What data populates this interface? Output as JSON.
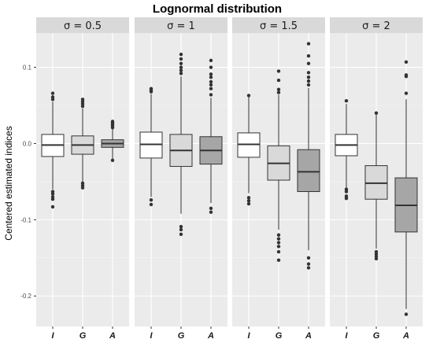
{
  "chart_data": {
    "type": "box",
    "title": "Lognormal distribution",
    "xlabel": "",
    "ylabel": "Centered estimated indices",
    "ylim": [
      -0.24,
      0.145
    ],
    "yticks": [
      0.1,
      0.0,
      -0.1,
      -0.2
    ],
    "ytick_labels": [
      "0.1",
      "0.0",
      "-0.1",
      "-0.2"
    ],
    "categories": [
      "I",
      "G",
      "A"
    ],
    "fill_colors": {
      "I": "#ffffff",
      "G": "#d9d9d9",
      "A": "#a6a6a6"
    },
    "grid": true,
    "panel_background": "#ebebeb",
    "strip_background": "#d9d9d9",
    "facets": [
      {
        "label": "σ = 0.5",
        "boxes": [
          {
            "category": "I",
            "lower_whisker": -0.06,
            "q1": -0.017,
            "median": -0.002,
            "q3": 0.012,
            "upper_whisker": 0.055,
            "outliers": [
              -0.083,
              -0.073,
              -0.07,
              -0.066,
              -0.063,
              0.058,
              0.061,
              0.066
            ]
          },
          {
            "category": "G",
            "lower_whisker": -0.05,
            "q1": -0.014,
            "median": -0.002,
            "q3": 0.01,
            "upper_whisker": 0.046,
            "outliers": [
              -0.058,
              -0.055,
              -0.052,
              0.049,
              0.052,
              0.055,
              0.058
            ]
          },
          {
            "category": "A",
            "lower_whisker": -0.022,
            "q1": -0.005,
            "median": 0.0,
            "q3": 0.005,
            "upper_whisker": 0.02,
            "outliers": [
              -0.022,
              0.021,
              0.023,
              0.025,
              0.027,
              0.029
            ]
          }
        ]
      },
      {
        "label": "σ = 1",
        "boxes": [
          {
            "category": "I",
            "lower_whisker": -0.07,
            "q1": -0.019,
            "median": -0.001,
            "q3": 0.015,
            "upper_whisker": 0.065,
            "outliers": [
              -0.08,
              -0.074,
              0.068,
              0.07,
              0.072
            ]
          },
          {
            "category": "G",
            "lower_whisker": -0.092,
            "q1": -0.03,
            "median": -0.009,
            "q3": 0.012,
            "upper_whisker": 0.088,
            "outliers": [
              -0.119,
              -0.113,
              -0.109,
              0.092,
              0.096,
              0.1,
              0.105,
              0.111,
              0.117
            ]
          },
          {
            "category": "A",
            "lower_whisker": -0.078,
            "q1": -0.027,
            "median": -0.009,
            "q3": 0.009,
            "upper_whisker": 0.06,
            "outliers": [
              -0.09,
              -0.085,
              0.064,
              0.072,
              0.077,
              0.081,
              0.087,
              0.091,
              0.1,
              0.109
            ]
          }
        ]
      },
      {
        "label": "σ = 1.5",
        "boxes": [
          {
            "category": "I",
            "lower_whisker": -0.065,
            "q1": -0.018,
            "median": -0.001,
            "q3": 0.014,
            "upper_whisker": 0.063,
            "outliers": [
              -0.079,
              -0.075,
              -0.071,
              0.063
            ]
          },
          {
            "category": "G",
            "lower_whisker": -0.113,
            "q1": -0.048,
            "median": -0.026,
            "q3": -0.003,
            "upper_whisker": 0.064,
            "outliers": [
              -0.153,
              -0.142,
              -0.135,
              -0.13,
              -0.125,
              -0.12,
              0.067,
              0.071,
              0.083,
              0.095
            ]
          },
          {
            "category": "A",
            "lower_whisker": -0.14,
            "q1": -0.063,
            "median": -0.037,
            "q3": -0.008,
            "upper_whisker": 0.073,
            "outliers": [
              -0.163,
              -0.158,
              -0.15,
              0.077,
              0.082,
              0.087,
              0.093,
              0.105,
              0.115,
              0.131
            ]
          }
        ]
      },
      {
        "label": "σ = 2",
        "boxes": [
          {
            "category": "I",
            "lower_whisker": -0.06,
            "q1": -0.016,
            "median": -0.002,
            "q3": 0.012,
            "upper_whisker": 0.052,
            "outliers": [
              -0.072,
              -0.069,
              -0.063,
              -0.06,
              0.056
            ]
          },
          {
            "category": "G",
            "lower_whisker": -0.138,
            "q1": -0.073,
            "median": -0.052,
            "q3": -0.029,
            "upper_whisker": 0.038,
            "outliers": [
              -0.151,
              -0.148,
              -0.145,
              -0.142,
              0.04
            ]
          },
          {
            "category": "A",
            "lower_whisker": -0.217,
            "q1": -0.116,
            "median": -0.081,
            "q3": -0.045,
            "upper_whisker": 0.058,
            "outliers": [
              -0.224,
              0.066,
              0.088,
              0.09,
              0.107
            ]
          }
        ]
      }
    ]
  }
}
